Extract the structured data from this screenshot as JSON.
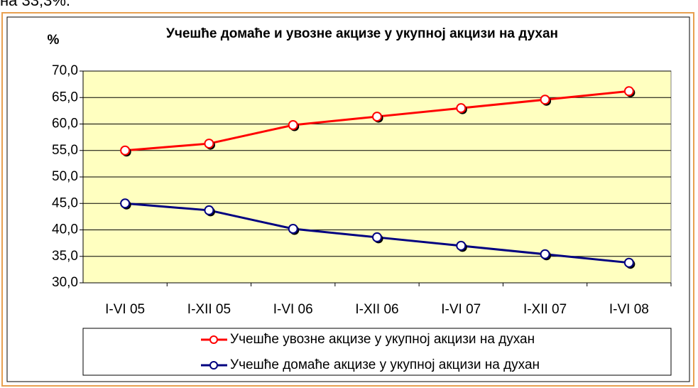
{
  "page_text": "на 33,3%.",
  "chart_data": {
    "type": "line",
    "title": "Учешће домаће и увозне акцизе у укупној акцизи на духан",
    "y_label": "%",
    "categories": [
      "I-VI 05",
      "I-XII 05",
      "I-VI 06",
      "I-XII 06",
      "I-VI 07",
      "I-XII 07",
      "I-VI 08"
    ],
    "series": [
      {
        "name": "Учешће увозне акцизе у укупној акцизи на духан",
        "color": "#ff0000",
        "values": [
          55.0,
          56.3,
          59.8,
          61.4,
          63.0,
          64.6,
          66.2
        ]
      },
      {
        "name": "Учешће домаће акцизе у укупној акцизи на духан",
        "color": "#000080",
        "values": [
          45.0,
          43.7,
          40.2,
          38.6,
          37.0,
          35.4,
          33.8
        ]
      }
    ],
    "ylim": [
      30,
      70
    ],
    "yticks": [
      {
        "value": 30,
        "label": "30,0"
      },
      {
        "value": 35,
        "label": "35,0"
      },
      {
        "value": 40,
        "label": "40,0"
      },
      {
        "value": 45,
        "label": "45,0"
      },
      {
        "value": 50,
        "label": "50,0"
      },
      {
        "value": 55,
        "label": "55,0"
      },
      {
        "value": 60,
        "label": "60,0"
      },
      {
        "value": 65,
        "label": "65,0"
      },
      {
        "value": 70,
        "label": "70,0"
      }
    ],
    "grid": true,
    "plot_color": "#ffffc0",
    "legend": "bottom"
  }
}
